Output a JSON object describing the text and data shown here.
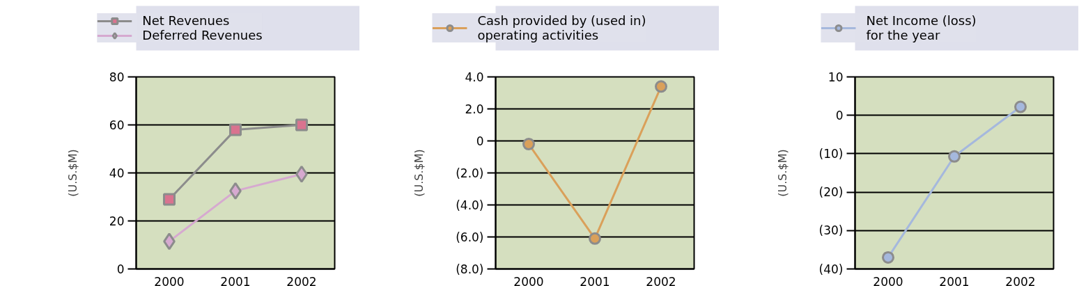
{
  "chart_data": [
    {
      "type": "line",
      "categories": [
        "2000",
        "2001",
        "2002"
      ],
      "ylabel": "(U.S.$M)",
      "ylim": [
        0,
        80
      ],
      "yticks": [
        0,
        20,
        40,
        60,
        80
      ],
      "grid": "y",
      "legend": "top",
      "series": [
        {
          "name": "Net Revenues",
          "color": "#8c8c8c",
          "marker": "square",
          "values": [
            29,
            58,
            60
          ]
        },
        {
          "name": "Deferred Revenues",
          "color": "#d6a9d0",
          "marker": "diamond",
          "values": [
            11.5,
            32.5,
            39.5
          ]
        }
      ]
    },
    {
      "type": "line",
      "categories": [
        "2000",
        "2001",
        "2002"
      ],
      "ylabel": "(U.S.$M)",
      "ylim": [
        -8,
        4
      ],
      "yticks": [
        {
          "value": -8,
          "label": "(8.0)"
        },
        {
          "value": -6,
          "label": "(6.0)"
        },
        {
          "value": -4,
          "label": "(4.0)"
        },
        {
          "value": -2,
          "label": "(2.0)"
        },
        0,
        {
          "value": 2,
          "label": "2.0"
        },
        {
          "value": 4,
          "label": "4.0"
        }
      ],
      "grid": "y",
      "legend": "top",
      "series": [
        {
          "name": "Cash provided by (used in)\noperating activities",
          "color": "#daa05a",
          "marker": "circle",
          "values": [
            -0.2,
            -6.1,
            3.4
          ]
        }
      ]
    },
    {
      "type": "line",
      "categories": [
        "2000",
        "2001",
        "2002"
      ],
      "ylabel": "(U.S.$M)",
      "ylim": [
        -40,
        10
      ],
      "yticks": [
        {
          "value": -40,
          "label": "(40)"
        },
        {
          "value": -30,
          "label": "(30)"
        },
        {
          "value": -20,
          "label": "(20)"
        },
        {
          "value": -10,
          "label": "(10)"
        },
        0,
        10
      ],
      "grid": "y",
      "legend": "top",
      "series": [
        {
          "name": "Net Income (loss)\nfor the year",
          "color": "#a5b8dd",
          "marker": "circle",
          "values": [
            -37,
            -10.7,
            2.2
          ]
        }
      ]
    }
  ]
}
